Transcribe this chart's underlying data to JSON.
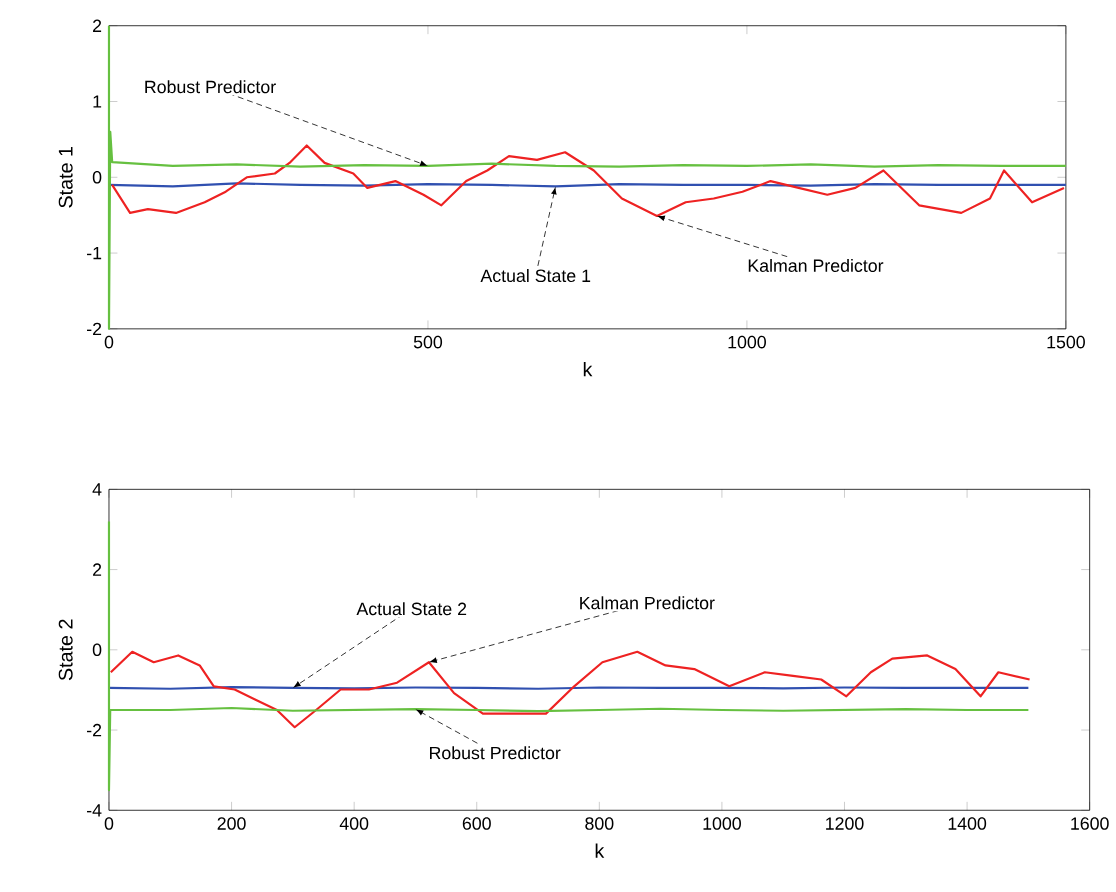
{
  "chart_data": [
    {
      "type": "line",
      "xlabel": "k",
      "ylabel": "State 1",
      "xlim": [
        0,
        1500
      ],
      "ylim": [
        -2,
        2
      ],
      "xticks": [
        0,
        500,
        1000,
        1500
      ],
      "yticks": [
        -2,
        -1,
        0,
        1,
        2
      ],
      "legend": false,
      "grid": false,
      "series": [
        {
          "name": "Actual State 1",
          "color": "#3050b0",
          "x": [
            0,
            100,
            200,
            300,
            400,
            500,
            600,
            700,
            800,
            900,
            1000,
            1100,
            1200,
            1300,
            1400,
            1500
          ],
          "values": [
            -0.1,
            -0.12,
            -0.08,
            -0.1,
            -0.11,
            -0.09,
            -0.1,
            -0.12,
            -0.09,
            -0.1,
            -0.1,
            -0.11,
            -0.09,
            -0.1,
            -0.1,
            -0.1
          ]
        },
        {
          "name": "Kalman Predictor",
          "color": "#ee2222",
          "x": [
            5,
            33,
            61,
            105,
            150,
            183,
            216,
            260,
            283,
            310,
            338,
            383,
            405,
            449,
            493,
            521,
            560,
            593,
            627,
            671,
            715,
            760,
            804,
            859,
            904,
            948,
            993,
            1037,
            1081,
            1126,
            1170,
            1214,
            1270,
            1336,
            1381,
            1403,
            1447,
            1497
          ],
          "values": [
            -0.1,
            -0.47,
            -0.42,
            -0.47,
            -0.33,
            -0.19,
            0,
            0.05,
            0.19,
            0.42,
            0.19,
            0.05,
            -0.14,
            -0.05,
            -0.23,
            -0.37,
            -0.05,
            0.09,
            0.28,
            0.23,
            0.33,
            0.09,
            -0.28,
            -0.51,
            -0.33,
            -0.28,
            -0.19,
            -0.05,
            -0.14,
            -0.23,
            -0.14,
            0.09,
            -0.37,
            -0.47,
            -0.28,
            0.09,
            -0.33,
            -0.14
          ]
        },
        {
          "name": "Robust Predictor",
          "color": "#66c040",
          "x": [
            0,
            0,
            2,
            5,
            100,
            200,
            300,
            400,
            500,
            600,
            700,
            800,
            900,
            1000,
            1100,
            1200,
            1300,
            1400,
            1500
          ],
          "values": [
            2,
            -2,
            0.6,
            0.2,
            0.15,
            0.17,
            0.14,
            0.16,
            0.15,
            0.18,
            0.15,
            0.14,
            0.16,
            0.15,
            0.17,
            0.14,
            0.16,
            0.15,
            0.15
          ]
        }
      ]
    },
    {
      "type": "line",
      "xlabel": "k",
      "ylabel": "State 2",
      "xlim": [
        0,
        1600
      ],
      "ylim": [
        -4,
        4
      ],
      "xticks": [
        0,
        200,
        400,
        600,
        800,
        1000,
        1200,
        1400,
        1600
      ],
      "yticks": [
        -4,
        -2,
        0,
        2,
        4
      ],
      "legend": false,
      "grid": false,
      "series": [
        {
          "name": "Actual State 2",
          "color": "#3050b0",
          "x": [
            0,
            100,
            200,
            300,
            400,
            500,
            600,
            700,
            800,
            900,
            1000,
            1100,
            1200,
            1300,
            1400,
            1500
          ],
          "values": [
            -0.95,
            -0.97,
            -0.93,
            -0.95,
            -0.96,
            -0.94,
            -0.95,
            -0.97,
            -0.94,
            -0.95,
            -0.95,
            -0.96,
            -0.94,
            -0.95,
            -0.95,
            -0.95
          ]
        },
        {
          "name": "Kalman Predictor",
          "color": "#ee2222",
          "x": [
            3,
            38,
            73,
            113,
            148,
            171,
            205,
            240,
            274,
            303,
            338,
            378,
            424,
            470,
            522,
            563,
            610,
            655,
            713,
            759,
            805,
            862,
            908,
            955,
            1012,
            1070,
            1116,
            1162,
            1203,
            1243,
            1278,
            1335,
            1381,
            1422,
            1451,
            1502
          ],
          "values": [
            -0.56,
            -0.05,
            -0.31,
            -0.14,
            -0.39,
            -0.91,
            -0.99,
            -1.25,
            -1.5,
            -1.93,
            -1.5,
            -0.99,
            -0.99,
            -0.82,
            -0.31,
            -1.08,
            -1.59,
            -1.59,
            -1.59,
            -0.91,
            -0.31,
            -0.05,
            -0.39,
            -0.48,
            -0.91,
            -0.56,
            -0.65,
            -0.74,
            -1.16,
            -0.56,
            -0.22,
            -0.14,
            -0.48,
            -1.16,
            -0.56,
            -0.74
          ]
        },
        {
          "name": "Robust Predictor",
          "color": "#66c040",
          "x": [
            0,
            0,
            2,
            100,
            200,
            300,
            400,
            500,
            600,
            700,
            800,
            900,
            1000,
            1100,
            1200,
            1300,
            1400,
            1500
          ],
          "values": [
            3.2,
            -3.5,
            -1.5,
            -1.5,
            -1.45,
            -1.52,
            -1.5,
            -1.48,
            -1.5,
            -1.53,
            -1.5,
            -1.47,
            -1.5,
            -1.52,
            -1.5,
            -1.48,
            -1.5,
            -1.5
          ]
        }
      ]
    }
  ]
}
